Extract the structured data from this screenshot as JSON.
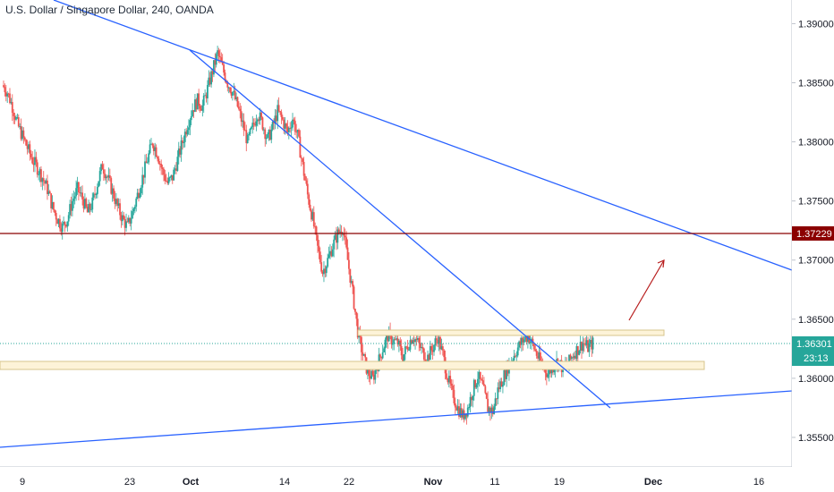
{
  "header": {
    "title": "U.S. Dollar / Singapore Dollar, 240, OANDA"
  },
  "colors": {
    "up": "#26a69a",
    "down": "#ef5350",
    "trendline": "#2962ff",
    "resistance": "#8b0000",
    "zone_fill": "#fdf3d8",
    "zone_border": "#d7c48c",
    "last_price_line": "#26a69a",
    "arrow": "#b71c1c"
  },
  "chart_data": {
    "type": "candlestick",
    "symbol": "USD/SGD",
    "timeframe": "240",
    "source": "OANDA",
    "y_axis": {
      "min": 1.3525,
      "max": 1.392,
      "ticks": [
        "1.39000",
        "1.38500",
        "1.38000",
        "1.37500",
        "1.37000",
        "1.36500",
        "1.36000",
        "1.35500"
      ]
    },
    "x_axis": {
      "ticks": [
        {
          "label": "9",
          "bold": false
        },
        {
          "label": "23",
          "bold": false
        },
        {
          "label": "Oct",
          "bold": true
        },
        {
          "label": "14",
          "bold": false
        },
        {
          "label": "22",
          "bold": false
        },
        {
          "label": "Nov",
          "bold": true
        },
        {
          "label": "11",
          "bold": false
        },
        {
          "label": "19",
          "bold": false
        },
        {
          "label": "Dec",
          "bold": true
        },
        {
          "label": "16",
          "bold": false
        }
      ]
    },
    "price_path": [
      1.3848,
      1.3842,
      1.383,
      1.3815,
      1.3805,
      1.3795,
      1.3785,
      1.3778,
      1.377,
      1.376,
      1.3745,
      1.3735,
      1.3728,
      1.3735,
      1.375,
      1.376,
      1.3752,
      1.374,
      1.3748,
      1.3765,
      1.378,
      1.377,
      1.3758,
      1.3745,
      1.3735,
      1.3728,
      1.374,
      1.3755,
      1.377,
      1.3785,
      1.38,
      1.379,
      1.3775,
      1.3765,
      1.377,
      1.3785,
      1.38,
      1.3815,
      1.3828,
      1.3835,
      1.383,
      1.3845,
      1.386,
      1.3875,
      1.3862,
      1.385,
      1.3842,
      1.383,
      1.3815,
      1.38,
      1.3812,
      1.3825,
      1.3815,
      1.3802,
      1.3812,
      1.3826,
      1.3818,
      1.3808,
      1.382,
      1.3805,
      1.378,
      1.3755,
      1.3735,
      1.371,
      1.369,
      1.37,
      1.3712,
      1.3722,
      1.3728,
      1.37,
      1.3672,
      1.364,
      1.362,
      1.3605,
      1.36,
      1.3612,
      1.3625,
      1.3636,
      1.3632,
      1.363,
      1.3618,
      1.3628,
      1.3636,
      1.363,
      1.3622,
      1.3618,
      1.3626,
      1.3635,
      1.362,
      1.36,
      1.3585,
      1.3575,
      1.3568,
      1.3575,
      1.359,
      1.3602,
      1.3592,
      1.3575,
      1.3572,
      1.359,
      1.36,
      1.361,
      1.3618,
      1.3626,
      1.3632,
      1.3636,
      1.3628,
      1.3618,
      1.361,
      1.3604,
      1.361,
      1.3615,
      1.3608,
      1.3612,
      1.362,
      1.3625,
      1.363,
      1.3626,
      1.363
    ],
    "annotations": {
      "resistance_level": 1.37229,
      "last_price": 1.36301,
      "countdown": "23:13"
    }
  }
}
